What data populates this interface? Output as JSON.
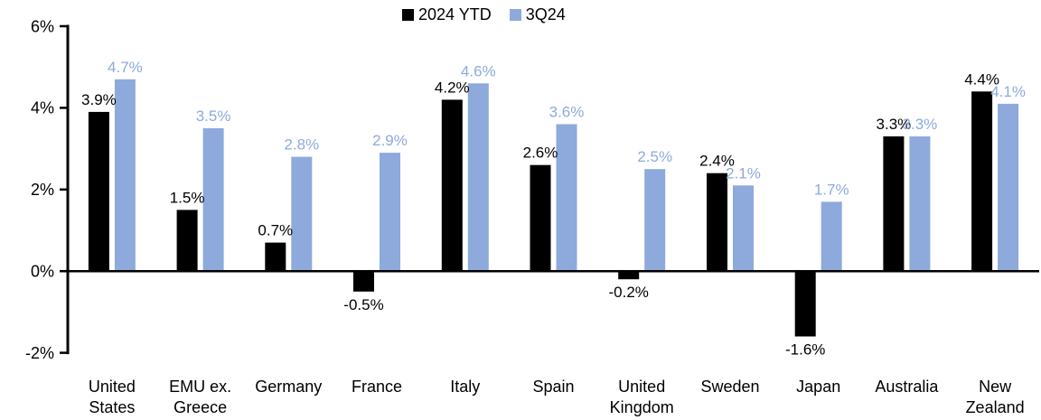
{
  "chart_data": {
    "type": "bar",
    "title": "",
    "xlabel": "",
    "ylabel": "",
    "categories": [
      "United States",
      "EMU ex. Greece",
      "Germany",
      "France",
      "Italy",
      "Spain",
      "United Kingdom",
      "Sweden",
      "Japan",
      "Australia",
      "New Zealand"
    ],
    "categories_wrapped": [
      [
        "United",
        "States"
      ],
      [
        "EMU ex.",
        "Greece"
      ],
      [
        "Germany"
      ],
      [
        "France"
      ],
      [
        "Italy"
      ],
      [
        "Spain"
      ],
      [
        "United",
        "Kingdom"
      ],
      [
        "Sweden"
      ],
      [
        "Japan"
      ],
      [
        "Australia"
      ],
      [
        "New",
        "Zealand"
      ]
    ],
    "series": [
      {
        "name": "2024 YTD",
        "color": "#000000",
        "values": [
          3.9,
          1.5,
          0.7,
          -0.5,
          4.2,
          2.6,
          -0.2,
          2.4,
          -1.6,
          3.3,
          4.4
        ],
        "labels": [
          "3.9%",
          "1.5%",
          "0.7%",
          "-0.5%",
          "4.2%",
          "2.6%",
          "-0.2%",
          "2.4%",
          "-1.6%",
          "3.3%",
          "4.4%"
        ]
      },
      {
        "name": "3Q24",
        "color": "#8EAADC",
        "values": [
          4.7,
          3.5,
          2.8,
          2.9,
          4.6,
          3.6,
          2.5,
          2.1,
          1.7,
          3.3,
          4.1
        ],
        "labels": [
          "4.7%",
          "3.5%",
          "2.8%",
          "2.9%",
          "4.6%",
          "3.6%",
          "2.5%",
          "2.1%",
          "1.7%",
          "3.3%",
          "4.1%"
        ]
      }
    ],
    "ylim": [
      -2,
      6
    ],
    "yticks": [
      6,
      4,
      2,
      0,
      -2
    ],
    "ytick_labels": [
      "6%",
      "4%",
      "2%",
      "0%",
      "-2%"
    ],
    "grid": false,
    "legend_position": "top-center",
    "axis_color": "#000000",
    "value_labels_shown": true,
    "value_label_format": "0.0%"
  }
}
